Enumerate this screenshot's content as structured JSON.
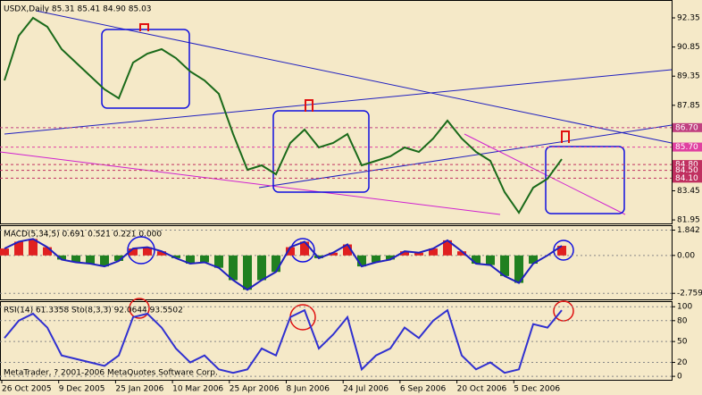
{
  "chart_data": [
    {
      "type": "line",
      "title": "USDX,Daily  85.31 85.41 84.90 85.03",
      "series": [
        {
          "name": "USDX",
          "color": "#1a6a1a",
          "values": [
            89.13,
            91.43,
            92.35,
            91.89,
            90.74,
            90.05,
            89.36,
            88.67,
            88.21,
            90.05,
            90.51,
            90.74,
            90.28,
            89.59,
            89.13,
            88.44,
            86.37,
            84.53,
            84.76,
            84.3,
            85.91,
            86.6,
            85.68,
            85.91,
            86.37,
            84.76,
            84.99,
            85.22,
            85.68,
            85.45,
            86.14,
            87.06,
            86.14,
            85.45,
            84.99,
            83.38,
            82.32,
            83.61,
            84.07,
            85.08
          ]
        }
      ],
      "ylim": [
        81.77,
        93.27
      ],
      "yticks": [
        92.35,
        90.85,
        89.35,
        87.85,
        83.45,
        81.95
      ],
      "levels": [
        {
          "value": 86.7,
          "label": "86.70",
          "color": "#c04080"
        },
        {
          "value": 85.7,
          "label": "85.70",
          "color": "#e040a0"
        },
        {
          "value": 84.8,
          "label": "84.80",
          "color": "#c03060"
        },
        {
          "value": 84.5,
          "label": "84.50",
          "color": "#c03060"
        },
        {
          "value": 84.1,
          "label": "84.10",
          "color": "#c03060"
        }
      ]
    },
    {
      "type": "bar",
      "title": "MACD(5,34,5) 0.691 0.521 0.221 0.000",
      "series": [
        {
          "name": "MACD",
          "color": "#2020c0",
          "values": [
            0.5,
            1.0,
            1.2,
            0.6,
            -0.3,
            -0.5,
            -0.6,
            -0.8,
            -0.4,
            0.5,
            0.6,
            0.3,
            -0.2,
            -0.6,
            -0.5,
            -0.9,
            -1.8,
            -2.5,
            -1.8,
            -1.2,
            0.6,
            1.0,
            -0.2,
            0.2,
            0.8,
            -0.8,
            -0.5,
            -0.3,
            0.3,
            0.2,
            0.5,
            1.1,
            0.3,
            -0.6,
            -0.7,
            -1.5,
            -2.0,
            -0.6,
            0.0,
            0.7
          ]
        }
      ],
      "ylim": [
        -3.2,
        2.2
      ],
      "yticks": [
        1.842,
        {
          "value": 0,
          "label": "0.00"
        },
        -2.759
      ]
    },
    {
      "type": "line",
      "title": "RSI(14) 61.3358  Sto(8,3,3) 92.0644 93.5502",
      "annotation": "MetaTrader, ? 2001-2006 MetaQuotes Software Corp.",
      "series": [
        {
          "name": "RSI",
          "color": "#3030d0",
          "values": [
            55,
            80,
            90,
            70,
            30,
            25,
            20,
            15,
            30,
            85,
            90,
            70,
            40,
            20,
            30,
            10,
            5,
            10,
            40,
            30,
            85,
            95,
            40,
            60,
            85,
            10,
            30,
            40,
            70,
            55,
            80,
            95,
            30,
            10,
            20,
            5,
            10,
            75,
            70,
            95
          ]
        }
      ],
      "ylim": [
        -5,
        108
      ],
      "yticks": [
        100,
        80,
        50,
        20,
        0
      ],
      "x_labels": [
        "26 Oct 2005",
        "9 Dec 2005",
        "25 Jan 2006",
        "10 Mar 2006",
        "25 Apr 2006",
        "8 Jun 2006",
        "24 Jul 2006",
        "6 Sep 2006",
        "20 Oct 2006",
        "5 Dec 2006"
      ]
    }
  ]
}
